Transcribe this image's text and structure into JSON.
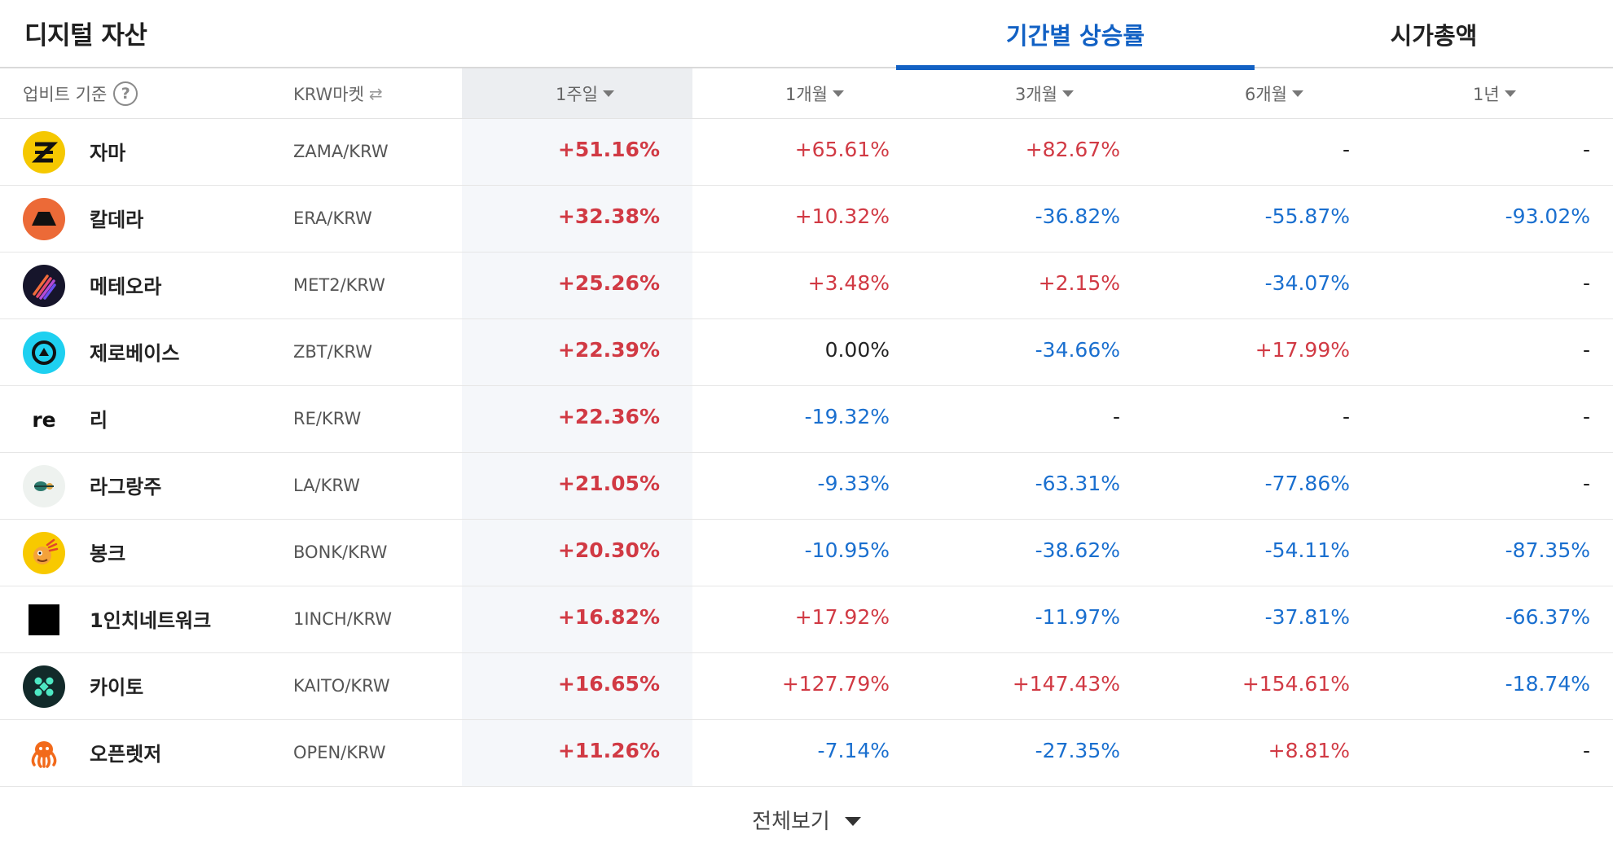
{
  "header": {
    "title": "디지털 자산",
    "tabs": [
      {
        "label": "기간별 상승률",
        "active": true
      },
      {
        "label": "시가총액",
        "active": false
      }
    ]
  },
  "columns": {
    "basis": "업비트 기준",
    "help": "?",
    "market": "KRW마켓",
    "swap": "⇄",
    "w1": "1주일",
    "m1": "1개월",
    "m3": "3개월",
    "m6": "6개월",
    "y1": "1년"
  },
  "colors": {
    "up": "#d13a44",
    "down": "#1a6fcf",
    "flat": "#222222",
    "accent": "#1261c4"
  },
  "rows": [
    {
      "name": "자마",
      "pair": "ZAMA/KRW",
      "icon": "zama-logo-icon",
      "w1": "+51.16%",
      "m1": "+65.61%",
      "m3": "+82.67%",
      "m6": "-",
      "y1": "-"
    },
    {
      "name": "칼데라",
      "pair": "ERA/KRW",
      "icon": "caldera-logo-icon",
      "w1": "+32.38%",
      "m1": "+10.32%",
      "m3": "-36.82%",
      "m6": "-55.87%",
      "y1": "-93.02%"
    },
    {
      "name": "메테오라",
      "pair": "MET2/KRW",
      "icon": "meteora-logo-icon",
      "w1": "+25.26%",
      "m1": "+3.48%",
      "m3": "+2.15%",
      "m6": "-34.07%",
      "y1": "-"
    },
    {
      "name": "제로베이스",
      "pair": "ZBT/KRW",
      "icon": "zerobase-logo-icon",
      "w1": "+22.39%",
      "m1": "0.00%",
      "m3": "-34.66%",
      "m6": "+17.99%",
      "y1": "-"
    },
    {
      "name": "리",
      "pair": "RE/KRW",
      "icon": "re-logo-icon",
      "logo_text": "re",
      "w1": "+22.36%",
      "m1": "-19.32%",
      "m3": "-",
      "m6": "-",
      "y1": "-"
    },
    {
      "name": "라그랑주",
      "pair": "LA/KRW",
      "icon": "lagrange-logo-icon",
      "w1": "+21.05%",
      "m1": "-9.33%",
      "m3": "-63.31%",
      "m6": "-77.86%",
      "y1": "-"
    },
    {
      "name": "봉크",
      "pair": "BONK/KRW",
      "icon": "bonk-logo-icon",
      "w1": "+20.30%",
      "m1": "-10.95%",
      "m3": "-38.62%",
      "m6": "-54.11%",
      "y1": "-87.35%"
    },
    {
      "name": "1인치네트워크",
      "pair": "1INCH/KRW",
      "icon": "1inch-logo-icon",
      "w1": "+16.82%",
      "m1": "+17.92%",
      "m3": "-11.97%",
      "m6": "-37.81%",
      "y1": "-66.37%"
    },
    {
      "name": "카이토",
      "pair": "KAITO/KRW",
      "icon": "kaito-logo-icon",
      "w1": "+16.65%",
      "m1": "+127.79%",
      "m3": "+147.43%",
      "m6": "+154.61%",
      "y1": "-18.74%"
    },
    {
      "name": "오픈렛저",
      "pair": "OPEN/KRW",
      "icon": "openledger-logo-icon",
      "w1": "+11.26%",
      "m1": "-7.14%",
      "m3": "-27.35%",
      "m6": "+8.81%",
      "y1": "-"
    }
  ],
  "footer": {
    "label": "전체보기"
  }
}
